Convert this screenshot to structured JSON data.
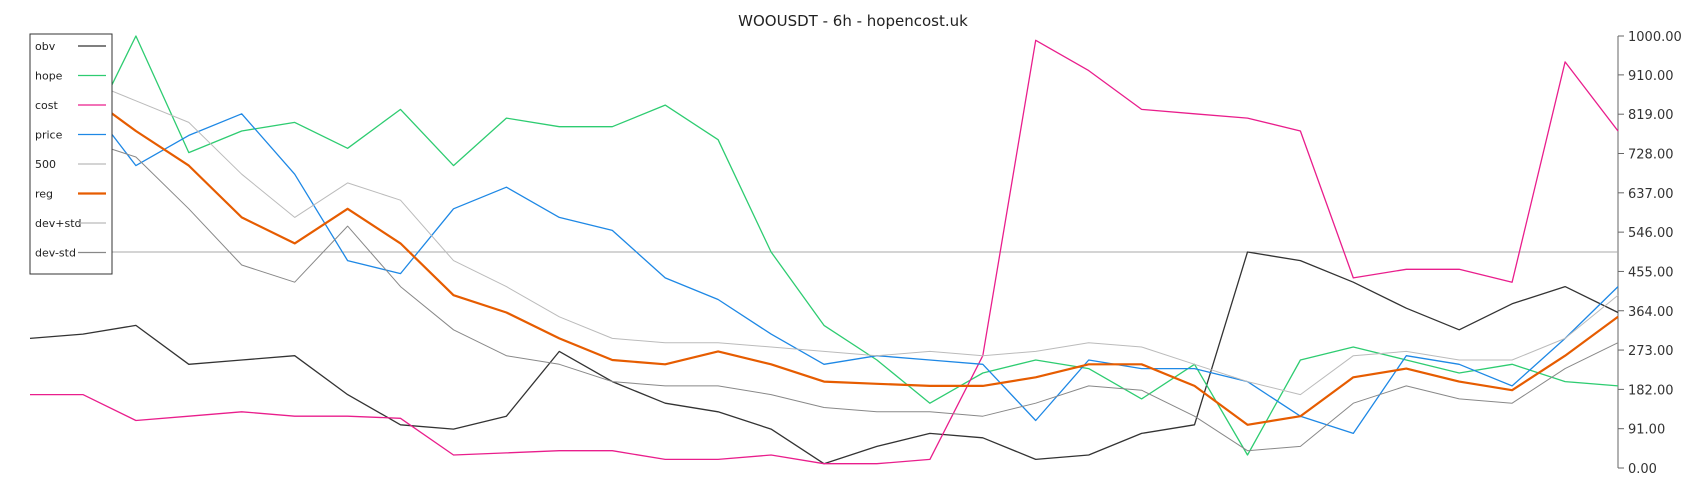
{
  "chart_data": {
    "type": "line",
    "title": "WOOUSDT - 6h - hopencost.uk",
    "ylim": [
      0,
      1000
    ],
    "y_ticks": [
      "1000.00",
      "910.00",
      "819.00",
      "728.00",
      "637.00",
      "546.00",
      "455.00",
      "364.00",
      "273.00",
      "182.00",
      "91.00",
      "0.00"
    ],
    "y_tick_values": [
      1000,
      910,
      819,
      728,
      637,
      546,
      455,
      364,
      273,
      182,
      91,
      0
    ],
    "grid": false,
    "legend_position": "top-left",
    "reference_line": {
      "value": 500,
      "color": "#aaaaaa"
    },
    "x": [
      0,
      10,
      20,
      30,
      40,
      50,
      60,
      70,
      80,
      90,
      100,
      110,
      120,
      130,
      140,
      150,
      160,
      170,
      180,
      190,
      200,
      210,
      220,
      230,
      240,
      250,
      260,
      270,
      280,
      290,
      300
    ],
    "series": [
      {
        "name": "obv",
        "color": "#333333",
        "width": 1.3,
        "values": [
          300,
          310,
          330,
          240,
          250,
          260,
          170,
          100,
          90,
          120,
          270,
          200,
          150,
          130,
          90,
          10,
          50,
          80,
          70,
          20,
          30,
          80,
          100,
          500,
          480,
          430,
          370,
          320,
          380,
          420,
          360
        ]
      },
      {
        "name": "hope",
        "color": "#2ecc71",
        "width": 1.3,
        "values": [
          780,
          750,
          1000,
          730,
          780,
          800,
          740,
          830,
          700,
          810,
          790,
          790,
          840,
          760,
          500,
          330,
          250,
          150,
          220,
          250,
          230,
          160,
          240,
          30,
          250,
          280,
          250,
          220,
          240,
          200,
          190
        ]
      },
      {
        "name": "cost",
        "color": "#e91e8c",
        "width": 1.3,
        "values": [
          170,
          170,
          110,
          120,
          130,
          120,
          120,
          115,
          30,
          35,
          40,
          40,
          20,
          20,
          30,
          10,
          10,
          20,
          260,
          990,
          920,
          830,
          820,
          810,
          780,
          440,
          460,
          460,
          430,
          940,
          780
        ]
      },
      {
        "name": "price",
        "color": "#1e88e5",
        "width": 1.3,
        "values": [
          780,
          860,
          700,
          770,
          820,
          680,
          480,
          450,
          600,
          650,
          580,
          550,
          440,
          390,
          310,
          240,
          260,
          250,
          240,
          110,
          250,
          230,
          230,
          200,
          120,
          80,
          260,
          240,
          190,
          300,
          420
        ]
      },
      {
        "name": "500",
        "color": "#bbbbbb",
        "width": 1.0,
        "values": [
          500,
          500,
          500,
          500,
          500,
          500,
          500,
          500,
          500,
          500,
          500,
          500,
          500,
          500,
          500,
          500,
          500,
          500,
          500,
          500,
          500,
          500,
          500,
          500,
          500,
          500,
          500,
          500,
          500,
          500,
          500
        ]
      },
      {
        "name": "reg",
        "color": "#e65c00",
        "width": 2.2,
        "values": [
          920,
          870,
          780,
          700,
          580,
          520,
          600,
          520,
          400,
          360,
          300,
          250,
          240,
          270,
          240,
          200,
          195,
          190,
          190,
          210,
          240,
          240,
          190,
          100,
          120,
          210,
          230,
          200,
          180,
          260,
          350
        ]
      },
      {
        "name": "dev+std",
        "color": "#bbbbbb",
        "width": 1.0,
        "values": [
          960,
          900,
          850,
          800,
          680,
          580,
          660,
          620,
          480,
          420,
          350,
          300,
          290,
          290,
          280,
          270,
          260,
          270,
          260,
          270,
          290,
          280,
          240,
          200,
          170,
          260,
          270,
          250,
          250,
          300,
          400
        ]
      },
      {
        "name": "dev-std",
        "color": "#888888",
        "width": 1.0,
        "values": [
          880,
          760,
          720,
          600,
          470,
          430,
          560,
          420,
          320,
          260,
          240,
          200,
          190,
          190,
          170,
          140,
          130,
          130,
          120,
          150,
          190,
          180,
          120,
          40,
          50,
          150,
          190,
          160,
          150,
          230,
          290
        ]
      }
    ]
  }
}
